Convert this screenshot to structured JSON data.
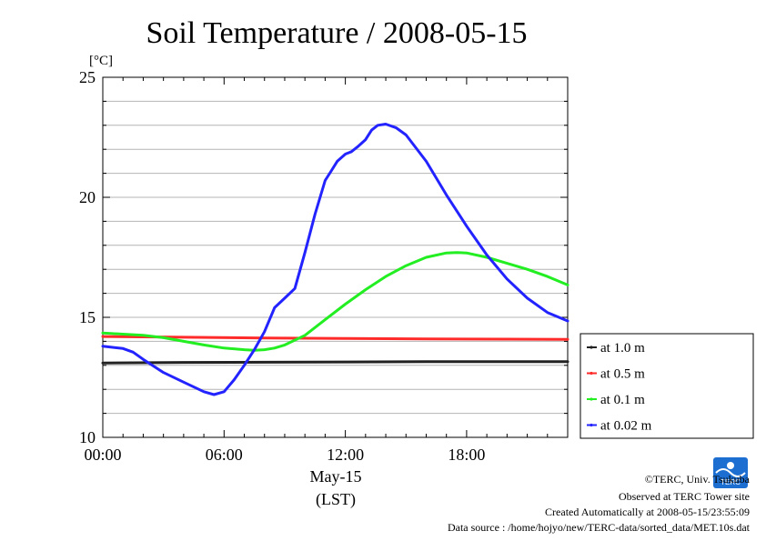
{
  "chart_data": {
    "type": "line",
    "title": "Soil Temperature / 2008-05-15",
    "ylabel": "[°C]",
    "xlabel_lines": [
      "May-15",
      "(LST)"
    ],
    "xlim": [
      0,
      23.0
    ],
    "ylim": [
      10,
      25
    ],
    "x_ticks": [
      {
        "value": 0,
        "label": "00:00"
      },
      {
        "value": 6,
        "label": "06:00"
      },
      {
        "value": 12,
        "label": "12:00"
      },
      {
        "value": 18,
        "label": "18:00"
      }
    ],
    "y_ticks": [
      {
        "value": 10,
        "label": "10"
      },
      {
        "value": 15,
        "label": "15"
      },
      {
        "value": 20,
        "label": "20"
      },
      {
        "value": 25,
        "label": "25"
      }
    ],
    "grid": true,
    "legend_position": "right",
    "series": [
      {
        "name": "at 1.0 m",
        "color": "#222222",
        "x": [
          0,
          4,
          8,
          12,
          16,
          20,
          23
        ],
        "y": [
          13.1,
          13.12,
          13.13,
          13.14,
          13.15,
          13.15,
          13.15
        ]
      },
      {
        "name": "at 0.5 m",
        "color": "#ff2a2a",
        "x": [
          0,
          4,
          8,
          12,
          16,
          20,
          23
        ],
        "y": [
          14.2,
          14.17,
          14.14,
          14.12,
          14.1,
          14.09,
          14.08
        ]
      },
      {
        "name": "at 0.1 m",
        "color": "#22ee22",
        "x": [
          0,
          1,
          2,
          3,
          4,
          5,
          6,
          7,
          7.5,
          8,
          8.5,
          9,
          10,
          11,
          12,
          13,
          14,
          15,
          16,
          17,
          17.5,
          18,
          19,
          20,
          21,
          22,
          23
        ],
        "y": [
          14.35,
          14.3,
          14.25,
          14.15,
          14.0,
          13.85,
          13.72,
          13.65,
          13.63,
          13.65,
          13.72,
          13.85,
          14.25,
          14.9,
          15.55,
          16.15,
          16.7,
          17.15,
          17.5,
          17.68,
          17.7,
          17.68,
          17.5,
          17.25,
          17.0,
          16.7,
          16.35
        ]
      },
      {
        "name": "at 0.02 m",
        "color": "#2323ff",
        "x": [
          0,
          1,
          1.5,
          2,
          3,
          4,
          5,
          5.5,
          6,
          6.5,
          7,
          7.5,
          8,
          8.5,
          9,
          9.5,
          10,
          10.5,
          11,
          11.3,
          11.6,
          12,
          12.3,
          12.6,
          13,
          13.3,
          13.6,
          14,
          14.5,
          15,
          16,
          17,
          18,
          19,
          20,
          21,
          22,
          23
        ],
        "y": [
          13.8,
          13.7,
          13.55,
          13.25,
          12.7,
          12.3,
          11.9,
          11.78,
          11.9,
          12.4,
          13.0,
          13.65,
          14.4,
          15.4,
          15.8,
          16.2,
          17.7,
          19.3,
          20.7,
          21.1,
          21.5,
          21.8,
          21.9,
          22.1,
          22.4,
          22.8,
          23.0,
          23.05,
          22.9,
          22.6,
          21.5,
          20.1,
          18.8,
          17.6,
          16.6,
          15.8,
          15.2,
          14.85
        ]
      }
    ]
  },
  "credits": {
    "copyright": "©TERC, Univ. Tsukuba",
    "site": "Observed at TERC Tower site",
    "created": "Created Automatically at 2008-05-15/23:55:09",
    "source": "Data source : /home/hojyo/new/TERC-data/sorted_data/MET.10s.dat"
  },
  "logo": {
    "text": "TERC",
    "color": "#1c6fd1"
  }
}
